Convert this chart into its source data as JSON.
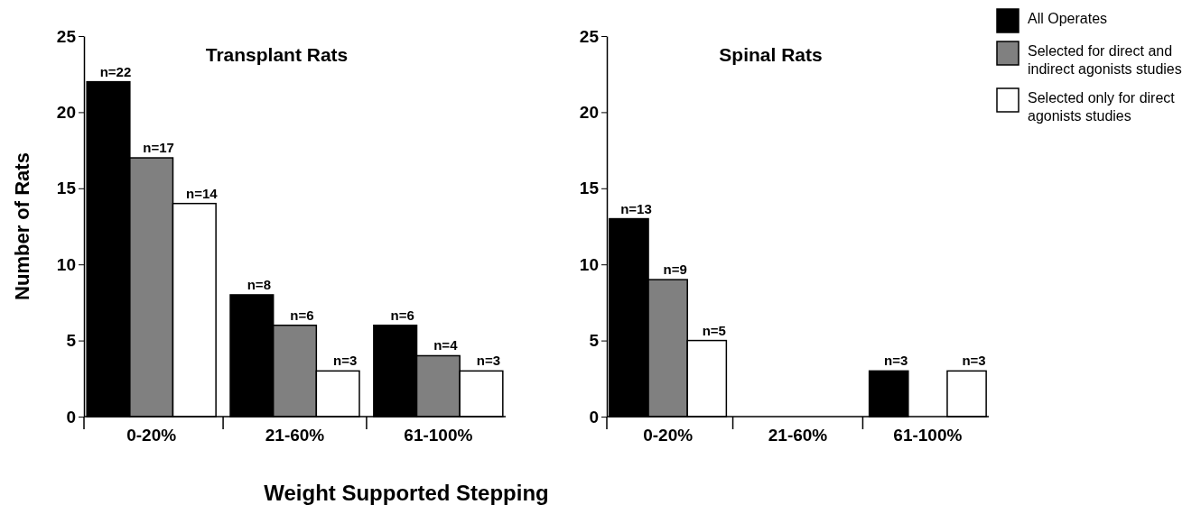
{
  "chart_data": [
    {
      "type": "bar",
      "title": "Transplant Rats",
      "xlabel": "Weight Supported Stepping",
      "ylabel": "Number of Rats",
      "categories": [
        "0-20%",
        "21-60%",
        "61-100%"
      ],
      "ylim": [
        0,
        25
      ],
      "yticks": [
        0,
        5,
        10,
        15,
        20,
        25
      ],
      "legend": false,
      "series": [
        {
          "color": "#000000",
          "values": [
            22,
            8,
            6
          ],
          "value_labels": [
            "n=22",
            "n=8",
            "n=6"
          ]
        },
        {
          "color": "#808080",
          "values": [
            17,
            6,
            4
          ],
          "value_labels": [
            "n=17",
            "n=6",
            "n=4"
          ]
        },
        {
          "color": "#ffffff",
          "values": [
            14,
            3,
            3
          ],
          "value_labels": [
            "n=14",
            "n=3",
            "n=3"
          ]
        }
      ]
    },
    {
      "type": "bar",
      "title": "Spinal Rats",
      "categories": [
        "0-20%",
        "21-60%",
        "61-100%"
      ],
      "ylim": [
        0,
        25
      ],
      "yticks": [
        0,
        5,
        10,
        15,
        20,
        25
      ],
      "legend": "top right",
      "series": [
        {
          "name": "All Operates",
          "color": "#000000",
          "values": [
            13,
            0,
            3
          ],
          "value_labels": [
            "n=13",
            null,
            "n=3"
          ]
        },
        {
          "name": "Selected for direct and indirect agonists studies",
          "color": "#808080",
          "values": [
            9,
            0,
            0
          ],
          "value_labels": [
            "n=9",
            null,
            null
          ]
        },
        {
          "name": "Selected only for direct agonists studies",
          "color": "#ffffff",
          "values": [
            5,
            0,
            3
          ],
          "value_labels": [
            "n=5",
            null,
            "n=3"
          ]
        }
      ]
    }
  ]
}
